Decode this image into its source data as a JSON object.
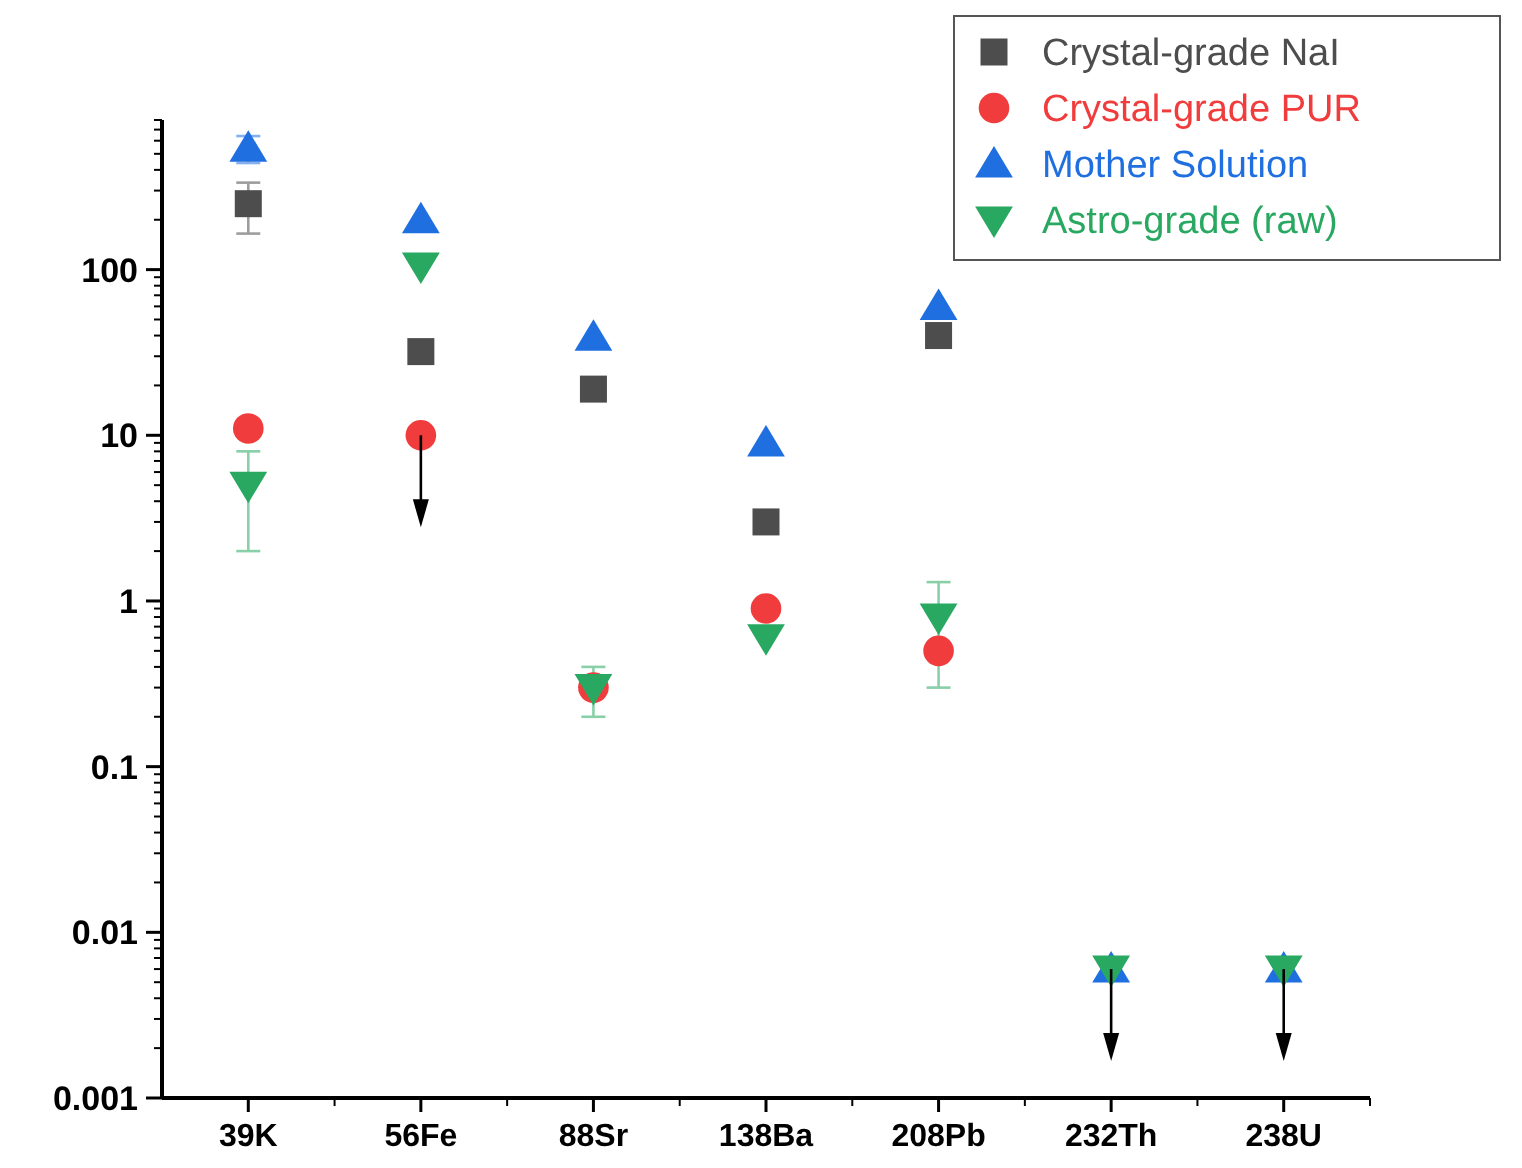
{
  "chart_data": {
    "type": "scatter",
    "categories": [
      "39K",
      "56Fe",
      "88Sr",
      "138Ba",
      "208Pb",
      "232Th",
      "238U"
    ],
    "series": [
      {
        "name": "Crystal-grade NaI",
        "color": "#4d4d4d",
        "marker": "square",
        "values": [
          250,
          32,
          19,
          3,
          40,
          null,
          null
        ],
        "errors": [
          85,
          null,
          null,
          null,
          null,
          null,
          null
        ]
      },
      {
        "name": "Crystal-grade PUR",
        "color": "#f03c3c",
        "marker": "circle",
        "values": [
          11,
          10,
          0.3,
          0.9,
          0.5,
          null,
          null
        ]
      },
      {
        "name": "Mother Solution",
        "color": "#1f6fe0",
        "marker": "triangle",
        "values": [
          540,
          200,
          39,
          9,
          60,
          0.006,
          0.006
        ],
        "errors": [
          100,
          null,
          null,
          null,
          null,
          null,
          null
        ]
      },
      {
        "name": "Astro-grade (raw)",
        "color": "#28a860",
        "marker": "triangle-down",
        "values": [
          5,
          105,
          0.3,
          0.6,
          0.8,
          0.006,
          0.006
        ],
        "errors": [
          3,
          null,
          0.1,
          null,
          0.5,
          null,
          null
        ]
      }
    ],
    "log": "y",
    "ylim": [
      0.001,
      800
    ],
    "yticks": [
      {
        "value": 0.001,
        "label": "0.001"
      },
      {
        "value": 0.01,
        "label": "0.01"
      },
      {
        "value": 0.1,
        "label": "0.1"
      },
      {
        "value": 1,
        "label": "1"
      },
      {
        "value": 10,
        "label": "10"
      },
      {
        "value": 100,
        "label": "100"
      }
    ],
    "legend": "top right",
    "grid": false
  }
}
